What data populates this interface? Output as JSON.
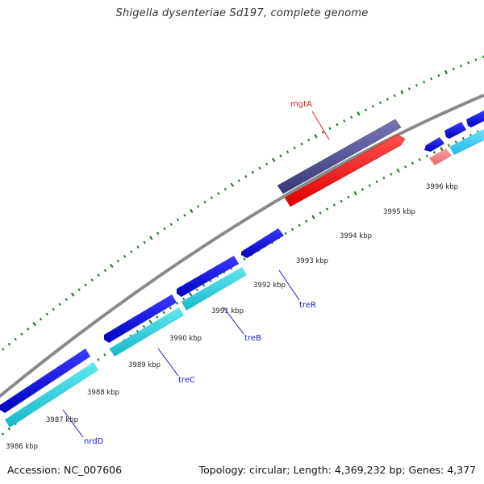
{
  "title": "Shigella dysenteriae Sd197, complete genome",
  "footer": {
    "accession": "Accession: NC_007606",
    "summary": "Topology: circular; Length: 4,369,232 bp; Genes: 4,377"
  },
  "colors": {
    "backbone": "#8a8a8a",
    "tick": "#1f7a1f",
    "gene_dark_blue": "#1010e0",
    "gene_slate": "#4a4a8e",
    "gene_red": "#ff1010",
    "gene_cyan": "#22cce0",
    "gene_light_cyan": "#33ccee",
    "gene_pink": "#f08080",
    "label_red": "#e02020",
    "label_blue": "#1a1ad0"
  },
  "scale_labels": [
    "3986 kbp",
    "3987 kbp",
    "3988 kbp",
    "3989 kbp",
    "3990 kbp",
    "3991 kbp",
    "3992 kbp",
    "3993 kbp",
    "3994 kbp",
    "3995 kbp",
    "3996 kbp"
  ],
  "gene_labels": {
    "mgtA": "mgtA",
    "nrdD": "nrdD",
    "treC": "treC",
    "treB": "treB",
    "treR": "treR"
  },
  "features": [
    {
      "name": "gene-mgtA-top",
      "track": "plus-outer",
      "color": "#4a4a8e"
    },
    {
      "name": "gene-mgtA-bottom",
      "track": "plus-inner",
      "color": "#ff1010"
    },
    {
      "name": "gene-nrdD-top",
      "track": "minus-outer",
      "color": "#1010e0"
    },
    {
      "name": "gene-nrdD-bottom",
      "track": "minus-inner",
      "color": "#22cce0"
    },
    {
      "name": "gene-treC-top",
      "track": "minus-outer",
      "color": "#1010e0"
    },
    {
      "name": "gene-treC-bottom",
      "track": "minus-inner",
      "color": "#22cce0"
    },
    {
      "name": "gene-treB-top",
      "track": "minus-outer",
      "color": "#1010e0"
    },
    {
      "name": "gene-treB-bottom",
      "track": "minus-inner",
      "color": "#22cce0"
    },
    {
      "name": "gene-treR",
      "track": "minus-outer",
      "color": "#1010e0"
    },
    {
      "name": "gene-upper-right-1",
      "track": "minus-outer",
      "color": "#1010e0"
    },
    {
      "name": "gene-upper-right-2",
      "track": "minus-outer",
      "color": "#1010e0"
    },
    {
      "name": "gene-upper-right-3",
      "track": "minus-outer",
      "color": "#1010e0"
    },
    {
      "name": "gene-upper-right-4",
      "track": "minus-inner",
      "color": "#33ccee"
    },
    {
      "name": "gene-upper-right-pink",
      "track": "minus-inner",
      "color": "#f08080"
    }
  ]
}
